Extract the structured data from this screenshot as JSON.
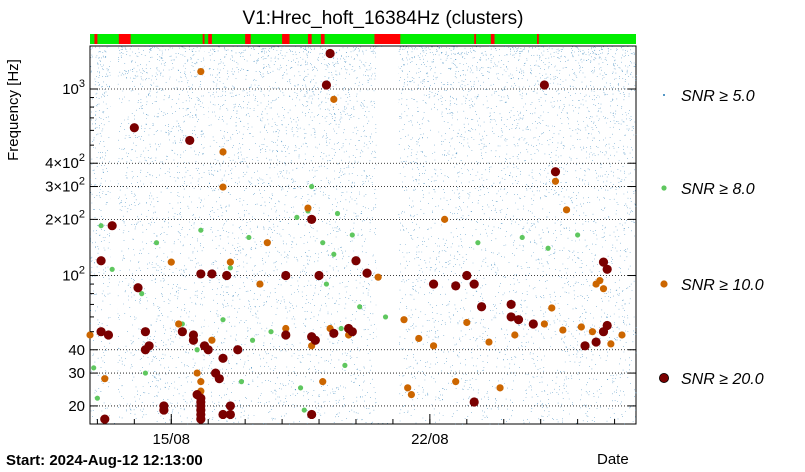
{
  "chart_data": {
    "type": "scatter",
    "title": "V1:Hrec_hoft_16384Hz (clusters)",
    "ylabel": "Frequency [Hz]",
    "xlabel": "Date",
    "yscale": "log",
    "ylim": [
      16,
      1700
    ],
    "xlim_days": [
      0,
      14.78
    ],
    "x_ticks": [
      {
        "day": 2.2,
        "label": "15/08"
      },
      {
        "day": 9.2,
        "label": "22/08"
      }
    ],
    "y_ticks": [
      {
        "value": 20,
        "label": "20"
      },
      {
        "value": 30,
        "label": "30"
      },
      {
        "value": 40,
        "label": "40"
      },
      {
        "value": 100,
        "label": "10",
        "exp": "2"
      },
      {
        "value": 200,
        "label": "2×10",
        "exp": "2"
      },
      {
        "value": 300,
        "label": "3×10",
        "exp": "2"
      },
      {
        "value": 400,
        "label": "4×10",
        "exp": "2"
      },
      {
        "value": 1000,
        "label": "10",
        "exp": "3"
      }
    ],
    "gaps_days": [
      [
        0.55,
        0.75
      ],
      [
        3.1,
        3.2
      ],
      [
        7.75,
        8.35
      ]
    ],
    "state_bar": {
      "colors": {
        "on": "#00ee00",
        "off": "#ff0000"
      },
      "off_segments_days": [
        [
          0.12,
          0.2
        ],
        [
          0.78,
          1.1
        ],
        [
          3.05,
          3.1
        ],
        [
          3.2,
          3.3
        ],
        [
          4.2,
          4.35
        ],
        [
          5.2,
          5.4
        ],
        [
          5.9,
          6.0
        ],
        [
          6.25,
          6.35
        ],
        [
          7.7,
          8.4
        ],
        [
          10.4,
          10.45
        ],
        [
          10.85,
          10.95
        ],
        [
          12.1,
          12.15
        ]
      ]
    },
    "series": [
      {
        "name": "SNR ≥ 5.0",
        "threshold": 5.0,
        "color": "#1f77b4",
        "radius": 0.6,
        "density": "dense background"
      },
      {
        "name": "SNR ≥ 8.0",
        "threshold": 8.0,
        "color": "#5fc75f",
        "radius": 2.6,
        "points": [
          [
            0.3,
            185
          ],
          [
            0.6,
            108
          ],
          [
            1.8,
            150
          ],
          [
            3.0,
            175
          ],
          [
            4.3,
            160
          ],
          [
            5.6,
            205
          ],
          [
            5.9,
            222
          ],
          [
            6.0,
            300
          ],
          [
            6.3,
            150
          ],
          [
            6.7,
            215
          ],
          [
            7.1,
            165
          ],
          [
            8.0,
            60
          ],
          [
            10.5,
            150
          ],
          [
            11.7,
            160
          ],
          [
            12.4,
            140
          ],
          [
            13.2,
            165
          ],
          [
            0.1,
            32
          ],
          [
            1.5,
            30
          ],
          [
            2.5,
            55
          ],
          [
            3.6,
            58
          ],
          [
            4.4,
            45
          ],
          [
            4.9,
            50
          ],
          [
            5.7,
            25
          ],
          [
            6.1,
            45
          ],
          [
            6.4,
            90
          ],
          [
            6.8,
            52
          ],
          [
            7.3,
            68
          ],
          [
            0.2,
            22
          ],
          [
            5.8,
            19
          ],
          [
            2.9,
            40
          ],
          [
            4.1,
            27
          ],
          [
            6.9,
            33
          ],
          [
            3.8,
            110
          ],
          [
            1.4,
            80
          ],
          [
            6.6,
            130
          ]
        ]
      },
      {
        "name": "SNR ≥ 10.0",
        "threshold": 10.0,
        "color": "#cc6600",
        "radius": 3.6,
        "points": [
          [
            3.0,
            1240
          ],
          [
            3.6,
            460
          ],
          [
            3.6,
            298
          ],
          [
            2.2,
            118
          ],
          [
            3.8,
            118
          ],
          [
            4.8,
            150
          ],
          [
            5.9,
            230
          ],
          [
            6.6,
            880
          ],
          [
            9.6,
            200
          ],
          [
            12.6,
            320
          ],
          [
            12.9,
            225
          ],
          [
            13.9,
            85
          ],
          [
            13.7,
            90
          ],
          [
            0.0,
            48
          ],
          [
            2.4,
            55
          ],
          [
            3.3,
            45
          ],
          [
            5.3,
            52
          ],
          [
            6.0,
            42
          ],
          [
            7.0,
            48
          ],
          [
            8.5,
            58
          ],
          [
            8.9,
            46
          ],
          [
            9.3,
            42
          ],
          [
            10.2,
            56
          ],
          [
            10.8,
            44
          ],
          [
            11.5,
            48
          ],
          [
            12.3,
            55
          ],
          [
            12.8,
            51
          ],
          [
            13.3,
            53
          ],
          [
            13.6,
            50
          ],
          [
            14.1,
            43
          ],
          [
            14.4,
            48
          ],
          [
            2.9,
            30
          ],
          [
            3.0,
            27
          ],
          [
            3.0,
            24
          ],
          [
            3.0,
            22
          ],
          [
            3.0,
            20
          ],
          [
            3.0,
            18
          ],
          [
            3.0,
            17
          ],
          [
            8.6,
            25
          ],
          [
            8.7,
            23
          ],
          [
            9.9,
            27
          ],
          [
            11.1,
            25
          ],
          [
            6.3,
            27
          ],
          [
            0.4,
            28
          ],
          [
            7.8,
            98
          ],
          [
            12.5,
            67
          ],
          [
            6.5,
            52
          ],
          [
            4.6,
            90
          ],
          [
            13.8,
            94
          ]
        ]
      },
      {
        "name": "SNR ≥ 20.0",
        "threshold": 20.0,
        "color": "#7a0000",
        "radius": 4.6,
        "points": [
          [
            6.5,
            1550
          ],
          [
            6.4,
            1050
          ],
          [
            1.2,
            620
          ],
          [
            2.7,
            530
          ],
          [
            12.3,
            1050
          ],
          [
            12.6,
            360
          ],
          [
            6.0,
            200
          ],
          [
            0.6,
            185
          ],
          [
            0.3,
            120
          ],
          [
            1.3,
            86
          ],
          [
            3.3,
            102
          ],
          [
            3.0,
            102
          ],
          [
            3.7,
            100
          ],
          [
            5.3,
            100
          ],
          [
            6.2,
            100
          ],
          [
            7.2,
            120
          ],
          [
            7.5,
            103
          ],
          [
            9.3,
            90
          ],
          [
            9.9,
            88
          ],
          [
            10.2,
            100
          ],
          [
            10.4,
            90
          ],
          [
            10.6,
            68
          ],
          [
            11.4,
            70
          ],
          [
            11.6,
            58
          ],
          [
            13.9,
            118
          ],
          [
            14.0,
            108
          ],
          [
            0.3,
            50
          ],
          [
            0.5,
            48
          ],
          [
            1.5,
            50
          ],
          [
            1.6,
            42
          ],
          [
            1.5,
            40
          ],
          [
            2.5,
            50
          ],
          [
            2.8,
            48
          ],
          [
            2.8,
            45
          ],
          [
            3.1,
            42
          ],
          [
            3.2,
            40
          ],
          [
            3.6,
            36
          ],
          [
            4.0,
            40
          ],
          [
            5.3,
            48
          ],
          [
            6.1,
            45
          ],
          [
            6.0,
            47
          ],
          [
            7.0,
            52
          ],
          [
            7.1,
            50
          ],
          [
            11.4,
            60
          ],
          [
            12.0,
            55
          ],
          [
            13.4,
            42
          ],
          [
            13.9,
            50
          ],
          [
            13.7,
            44
          ],
          [
            14.0,
            54
          ],
          [
            2.0,
            20
          ],
          [
            2.0,
            19
          ],
          [
            2.9,
            23
          ],
          [
            3.0,
            22
          ],
          [
            3.0,
            21
          ],
          [
            3.0,
            20
          ],
          [
            3.0,
            19
          ],
          [
            3.0,
            18
          ],
          [
            3.0,
            17
          ],
          [
            3.4,
            30
          ],
          [
            3.5,
            28
          ],
          [
            3.8,
            20
          ],
          [
            3.8,
            18
          ],
          [
            3.6,
            18
          ],
          [
            6.0,
            18
          ],
          [
            0.4,
            17
          ],
          [
            10.4,
            21
          ],
          [
            6.6,
            49
          ]
        ]
      }
    ],
    "legend_position": "right"
  },
  "footer": {
    "start_label": "Start: 2024-Aug-12 12:13:00",
    "xaxis_label": "Date"
  }
}
